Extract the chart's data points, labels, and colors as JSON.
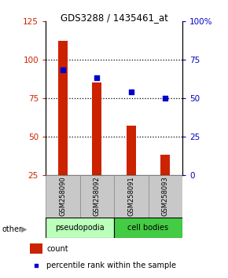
{
  "title": "GDS3288 / 1435461_at",
  "samples": [
    "GSM258090",
    "GSM258092",
    "GSM258091",
    "GSM258093"
  ],
  "groups": [
    "pseudopodia",
    "pseudopodia",
    "cell bodies",
    "cell bodies"
  ],
  "bar_values": [
    112,
    85,
    57,
    38
  ],
  "dot_values_pct": [
    68,
    63,
    54,
    50
  ],
  "bar_color": "#cc2200",
  "dot_color": "#0000cc",
  "ylim_left": [
    25,
    125
  ],
  "ylim_right": [
    0,
    100
  ],
  "yticks_left": [
    25,
    50,
    75,
    100,
    125
  ],
  "yticks_right": [
    0,
    25,
    50,
    75,
    100
  ],
  "ytick_labels_left": [
    "25",
    "50",
    "75",
    "100",
    "125"
  ],
  "ytick_labels_right": [
    "0",
    "25",
    "50",
    "75",
    "100%"
  ],
  "group_colors": {
    "pseudopodia": "#bbffbb",
    "cell bodies": "#44cc44"
  },
  "left_axis_color": "#cc2200",
  "right_axis_color": "#0000cc",
  "other_label": "other"
}
